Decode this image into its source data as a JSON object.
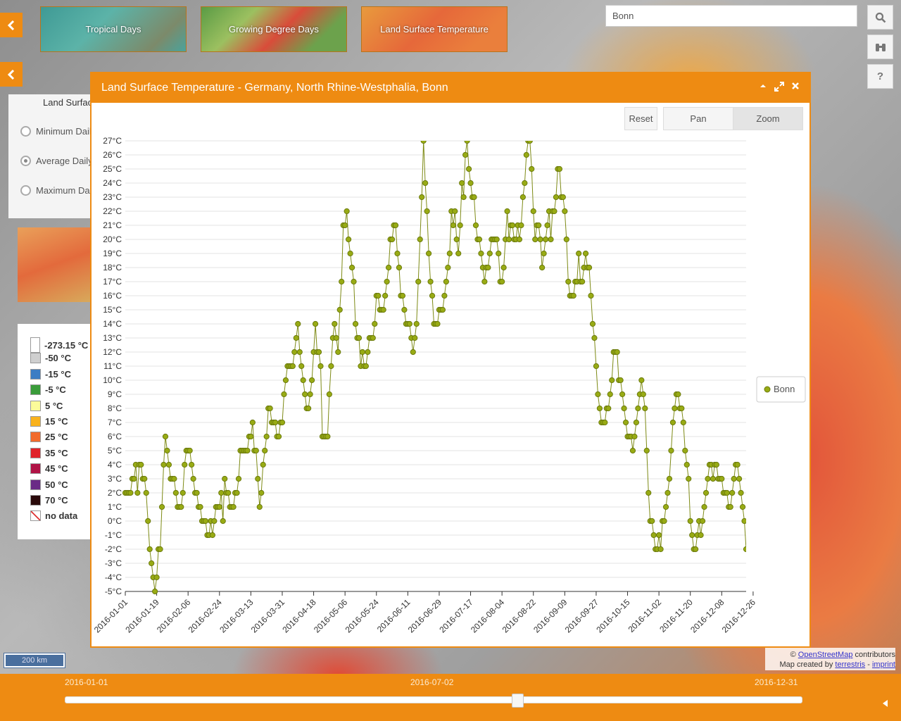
{
  "layers": [
    {
      "label": "Tropical Days",
      "color": "#4aa89e"
    },
    {
      "label": "Growing Degree Days",
      "color": "#5f9e4a"
    },
    {
      "label": "Land Surface Temperature",
      "color": "#e8702f"
    }
  ],
  "search": {
    "value": "Bonn"
  },
  "sidepanel": {
    "title": "Land Surface",
    "options": [
      {
        "label": "Minimum Daily",
        "selected": false
      },
      {
        "label": "Average Daily",
        "selected": true
      },
      {
        "label": "Maximum Daily",
        "selected": false
      }
    ]
  },
  "legend": [
    {
      "label": "-273.15 °C",
      "color": "#ffffff"
    },
    {
      "label": "-50 °C",
      "color": "#cfcfcf"
    },
    {
      "label": "-15 °C",
      "color": "#3c7dc4"
    },
    {
      "label": "-5 °C",
      "color": "#3a9c3a"
    },
    {
      "label": "5 °C",
      "color": "#fbfb9a"
    },
    {
      "label": "15 °C",
      "color": "#f9b21c"
    },
    {
      "label": "25 °C",
      "color": "#f26b2c"
    },
    {
      "label": "35 °C",
      "color": "#e0232a"
    },
    {
      "label": "45 °C",
      "color": "#b01345"
    },
    {
      "label": "50 °C",
      "color": "#6a2a86"
    },
    {
      "label": "70 °C",
      "color": "#2a0a0a"
    },
    {
      "label": "no data",
      "color": "#ffffff"
    }
  ],
  "scale": {
    "label": "200 km"
  },
  "attribution": {
    "prefix": "©",
    "osm": "OpenStreetMap",
    "osm_suffix": "contributors",
    "made": "Map created by",
    "terrestris": "terrestris",
    "sep": "-",
    "imprint": "imprint"
  },
  "timeline": {
    "start": "2016-01-01",
    "current": "2016-07-02",
    "end": "2016-12-31",
    "position": 0.5
  },
  "popup": {
    "title": "Land Surface Temperature - Germany, North Rhine-Westphalia, Bonn",
    "reset": "Reset",
    "pan": "Pan",
    "zoom": "Zoom",
    "active_mode": "zoom"
  },
  "chart_data": {
    "type": "line",
    "start_date": "2016-01-01",
    "ylim": [
      -5,
      27
    ],
    "yticks": [
      "-5°C",
      "-4°C",
      "-3°C",
      "-2°C",
      "-1°C",
      "0°C",
      "1°C",
      "2°C",
      "3°C",
      "4°C",
      "5°C",
      "6°C",
      "7°C",
      "8°C",
      "9°C",
      "10°C",
      "11°C",
      "12°C",
      "13°C",
      "14°C",
      "15°C",
      "16°C",
      "17°C",
      "18°C",
      "19°C",
      "20°C",
      "21°C",
      "22°C",
      "23°C",
      "24°C",
      "25°C",
      "26°C",
      "27°C"
    ],
    "xticks": [
      "2016-01-01",
      "2016-01-19",
      "2016-02-06",
      "2016-02-24",
      "2016-03-13",
      "2016-03-31",
      "2016-04-18",
      "2016-05-06",
      "2016-05-24",
      "2016-06-11",
      "2016-06-29",
      "2016-07-17",
      "2016-08-04",
      "2016-08-22",
      "2016-09-09",
      "2016-09-27",
      "2016-10-15",
      "2016-11-02",
      "2016-11-20",
      "2016-12-08",
      "2016-12-26"
    ],
    "legend": "Bonn",
    "color": "#8a9a1a",
    "series": [
      {
        "name": "Bonn",
        "values": [
          2,
          2,
          2,
          2,
          3,
          3,
          4,
          2,
          4,
          4,
          3,
          3,
          2,
          0,
          -2,
          -3,
          -4,
          -5,
          -4,
          -2,
          -2,
          1,
          4,
          6,
          5,
          4,
          3,
          3,
          3,
          2,
          1,
          1,
          1,
          2,
          4,
          5,
          5,
          5,
          4,
          3,
          2,
          2,
          1,
          1,
          0,
          0,
          0,
          -1,
          -1,
          0,
          -1,
          0,
          1,
          1,
          1,
          2,
          0,
          3,
          2,
          2,
          1,
          1,
          1,
          2,
          2,
          3,
          5,
          5,
          5,
          5,
          5,
          6,
          6,
          7,
          5,
          5,
          3,
          1,
          2,
          4,
          5,
          6,
          8,
          8,
          7,
          7,
          7,
          6,
          6,
          7,
          7,
          9,
          10,
          11,
          11,
          11,
          11,
          12,
          13,
          14,
          12,
          11,
          10,
          9,
          8,
          8,
          9,
          10,
          12,
          14,
          12,
          12,
          11,
          6,
          6,
          6,
          6,
          9,
          11,
          13,
          14,
          13,
          12,
          15,
          17,
          21,
          21,
          22,
          20,
          19,
          18,
          17,
          14,
          13,
          13,
          11,
          12,
          11,
          11,
          12,
          13,
          13,
          13,
          14,
          16,
          16,
          15,
          15,
          15,
          16,
          17,
          18,
          20,
          20,
          21,
          21,
          19,
          18,
          16,
          16,
          15,
          14,
          14,
          14,
          13,
          12,
          13,
          14,
          17,
          20,
          23,
          27,
          24,
          22,
          19,
          17,
          16,
          14,
          14,
          14,
          15,
          15,
          15,
          16,
          17,
          18,
          19,
          22,
          21,
          22,
          20,
          19,
          21,
          24,
          23,
          26,
          27,
          25,
          24,
          23,
          23,
          21,
          20,
          20,
          19,
          18,
          17,
          18,
          18,
          19,
          20,
          20,
          20,
          20,
          19,
          17,
          17,
          18,
          20,
          22,
          20,
          21,
          21,
          20,
          20,
          21,
          20,
          21,
          23,
          24,
          26,
          27,
          27,
          25,
          22,
          20,
          21,
          21,
          20,
          18,
          19,
          20,
          21,
          22,
          20,
          22,
          22,
          23,
          25,
          25,
          23,
          23,
          22,
          20,
          17,
          16,
          16,
          16,
          17,
          17,
          19,
          17,
          17,
          18,
          19,
          18,
          18,
          16,
          14,
          13,
          11,
          9,
          8,
          7,
          7,
          7,
          8,
          8,
          9,
          10,
          12,
          12,
          12,
          10,
          10,
          9,
          8,
          7,
          6,
          6,
          6,
          5,
          6,
          7,
          8,
          9,
          10,
          9,
          8,
          5,
          2,
          0,
          0,
          -1,
          -2,
          -2,
          -1,
          -2,
          0,
          0,
          1,
          2,
          3,
          5,
          7,
          8,
          9,
          9,
          8,
          8,
          7,
          5,
          4,
          3,
          0,
          -1,
          -2,
          -2,
          -1,
          0,
          -1,
          0,
          1,
          2,
          3,
          4,
          4,
          3,
          4,
          4,
          3,
          3,
          3,
          2,
          2,
          2,
          1,
          1,
          2,
          3,
          4,
          4,
          3,
          2,
          1,
          0,
          -2
        ]
      }
    ]
  }
}
